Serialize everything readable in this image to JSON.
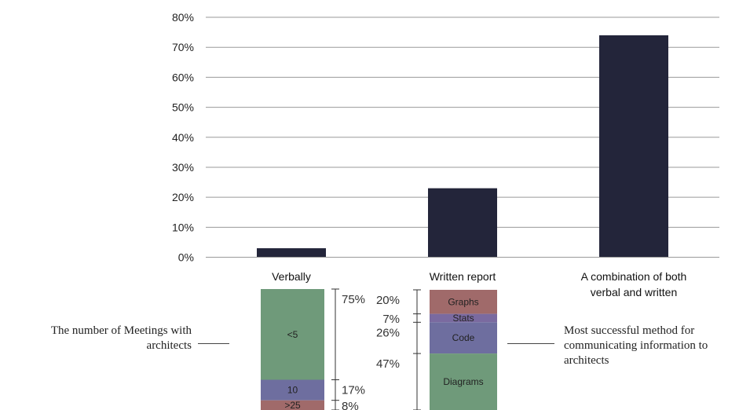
{
  "chart_data": [
    {
      "type": "bar",
      "categories": [
        "Verbally",
        "Written report",
        "A combination of both verbal and written"
      ],
      "values": [
        3,
        23,
        74
      ],
      "y_unit": "%",
      "ylim": [
        0,
        80
      ],
      "yticks": [
        "0%",
        "10%",
        "20%",
        "30%",
        "40%",
        "50%",
        "60%",
        "70%",
        "80%"
      ],
      "grid": true,
      "bar_color": "#23253a"
    },
    {
      "type": "bar",
      "stacked": true,
      "category": "Verbally",
      "segments": [
        {
          "label": "<5",
          "value": 75,
          "value_label": "75%",
          "color": "#6f9a7a"
        },
        {
          "label": "10",
          "value": 17,
          "value_label": "17%",
          "color": "#6e6e9f"
        },
        {
          "label": ">25",
          "value": 8,
          "value_label": "8%",
          "color": "#a06a6a"
        }
      ],
      "note": "The number of Meetings with architects"
    },
    {
      "type": "bar",
      "stacked": true,
      "category": "Written report",
      "segments": [
        {
          "label": "Graphs",
          "value": 20,
          "value_label": "20%",
          "color": "#a06a6a"
        },
        {
          "label": "Stats",
          "value": 7,
          "value_label": "7%",
          "color": "#7a6aa0"
        },
        {
          "label": "Code",
          "value": 26,
          "value_label": "26%",
          "color": "#6e6e9f"
        },
        {
          "label": "Diagrams",
          "value": 47,
          "value_label": "47%",
          "color": "#6f9a7a"
        }
      ],
      "note": "Most successful method for communicating information to architects"
    }
  ]
}
